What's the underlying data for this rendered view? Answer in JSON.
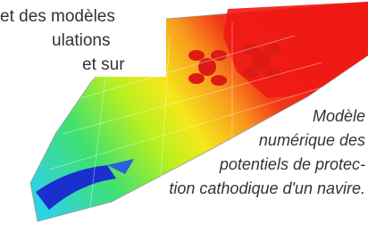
{
  "body_text": {
    "lines": [
      "et des modèles",
      "ulations",
      "et sur"
    ]
  },
  "caption": {
    "lines": [
      "Modèle",
      "numérique des",
      "potentiels de protec-",
      "tion cathodique d'un navire."
    ]
  }
}
